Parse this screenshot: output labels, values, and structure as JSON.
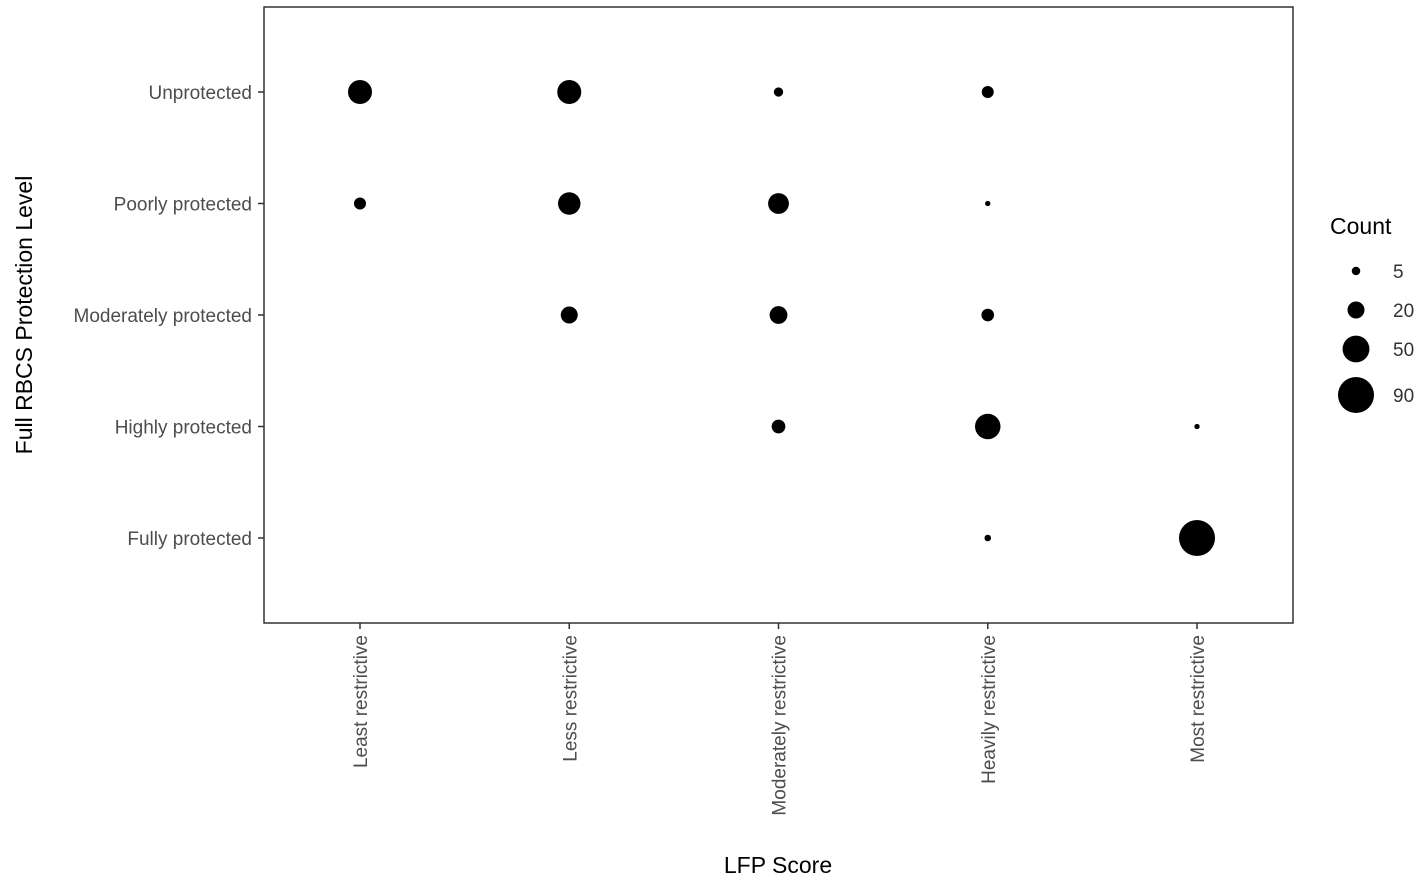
{
  "chart_data": {
    "type": "scatter",
    "xlabel": "LFP Score",
    "ylabel": "Full RBCS Protection Level",
    "x_categories": [
      "Least restrictive",
      "Less restrictive",
      "Moderately restrictive",
      "Heavily restrictive",
      "Most restrictive"
    ],
    "y_categories": [
      "Fully protected",
      "Highly protected",
      "Moderately protected",
      "Poorly protected",
      "Unprotected"
    ],
    "points": [
      {
        "x": "Least restrictive",
        "y": "Unprotected",
        "count": 40
      },
      {
        "x": "Less restrictive",
        "y": "Unprotected",
        "count": 40
      },
      {
        "x": "Moderately restrictive",
        "y": "Unprotected",
        "count": 6
      },
      {
        "x": "Heavily restrictive",
        "y": "Unprotected",
        "count": 10
      },
      {
        "x": "Least restrictive",
        "y": "Poorly protected",
        "count": 10
      },
      {
        "x": "Less restrictive",
        "y": "Poorly protected",
        "count": 35
      },
      {
        "x": "Moderately restrictive",
        "y": "Poorly protected",
        "count": 30
      },
      {
        "x": "Heavily restrictive",
        "y": "Poorly protected",
        "count": 2
      },
      {
        "x": "Less restrictive",
        "y": "Moderately protected",
        "count": 20
      },
      {
        "x": "Moderately restrictive",
        "y": "Moderately protected",
        "count": 22
      },
      {
        "x": "Heavily restrictive",
        "y": "Moderately protected",
        "count": 11
      },
      {
        "x": "Moderately restrictive",
        "y": "Highly protected",
        "count": 13
      },
      {
        "x": "Heavily restrictive",
        "y": "Highly protected",
        "count": 45
      },
      {
        "x": "Most restrictive",
        "y": "Highly protected",
        "count": 2
      },
      {
        "x": "Heavily restrictive",
        "y": "Fully protected",
        "count": 3
      },
      {
        "x": "Most restrictive",
        "y": "Fully protected",
        "count": 90
      }
    ],
    "legend": {
      "title": "Count",
      "entries": [
        5,
        20,
        50,
        90
      ],
      "position": "right"
    },
    "grid": false,
    "colors": {
      "point": "#000000",
      "panel_border": "#333333",
      "tick_label": "#4d4d4d"
    }
  }
}
